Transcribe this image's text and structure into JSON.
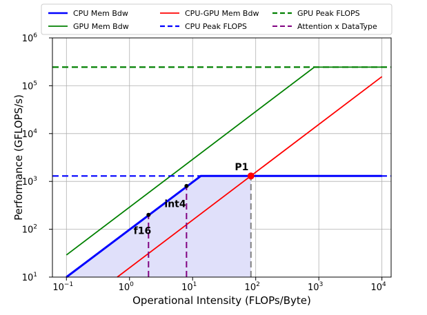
{
  "chart_data": {
    "type": "line",
    "xlabel": "Operational Intensity (FLOPs/Byte)",
    "ylabel": "Performance (GFLOPS/s)",
    "xscale": "log",
    "yscale": "log",
    "xlim": [
      0.06,
      14000
    ],
    "ylim": [
      10,
      1000000
    ],
    "grid": true,
    "legend_position": "top, 3 columns",
    "x_ticks": [
      {
        "base": "10",
        "exp": "−1",
        "value": 0.1
      },
      {
        "base": "10",
        "exp": "0",
        "value": 1
      },
      {
        "base": "10",
        "exp": "1",
        "value": 10
      },
      {
        "base": "10",
        "exp": "2",
        "value": 100
      },
      {
        "base": "10",
        "exp": "3",
        "value": 1000
      },
      {
        "base": "10",
        "exp": "4",
        "value": 10000
      }
    ],
    "y_ticks": [
      {
        "base": "10",
        "exp": "1",
        "value": 10
      },
      {
        "base": "10",
        "exp": "2",
        "value": 100
      },
      {
        "base": "10",
        "exp": "3",
        "value": 1000
      },
      {
        "base": "10",
        "exp": "4",
        "value": 10000
      },
      {
        "base": "10",
        "exp": "5",
        "value": 100000
      },
      {
        "base": "10",
        "exp": "6",
        "value": 1000000
      }
    ],
    "series": [
      {
        "name": "CPU Mem Bdw",
        "color": "#0000ff",
        "style": "solid",
        "width": 3,
        "x": [
          0.1,
          13.5,
          10000
        ],
        "y": [
          10,
          1300,
          1300
        ]
      },
      {
        "name": "GPU Mem Bdw",
        "color": "#008000",
        "style": "solid",
        "width": 1.8,
        "x": [
          0.1,
          850,
          10000
        ],
        "y": [
          29,
          245000,
          245000
        ]
      },
      {
        "name": "CPU-GPU Mem Bdw",
        "color": "#ff0000",
        "style": "solid",
        "width": 1.8,
        "x": [
          0.64,
          10000
        ],
        "y": [
          10,
          155000
        ]
      },
      {
        "name": "CPU Peak FLOPS",
        "color": "#0000ff",
        "style": "dashed",
        "width": 2.2,
        "x": [
          0.06,
          14000
        ],
        "y": [
          1300,
          1300
        ]
      },
      {
        "name": "GPU Peak FLOPS",
        "color": "#008000",
        "style": "dashed",
        "width": 2.2,
        "x": [
          0.06,
          14000
        ],
        "y": [
          245000,
          245000
        ]
      },
      {
        "name": "Attention x DataType",
        "color": "#800080",
        "style": "dashed",
        "width": 2,
        "x": [
          2,
          2
        ],
        "y": [
          10,
          200
        ]
      }
    ],
    "extra_lines": [
      {
        "color": "#800080",
        "style": "dashed",
        "width": 2,
        "x": [
          8,
          8
        ],
        "y": [
          10,
          800
        ]
      },
      {
        "color": "#808080",
        "style": "dashed",
        "width": 2,
        "x": [
          84,
          84
        ],
        "y": [
          10,
          1300
        ]
      }
    ],
    "shaded_region": {
      "color": "#e0e0fa",
      "x": [
        0.1,
        13.5,
        84,
        84,
        0.1
      ],
      "y": [
        10,
        1300,
        1300,
        10,
        10
      ]
    },
    "points": [
      {
        "x": 2,
        "y": 200,
        "color": "#000000",
        "r": 3
      },
      {
        "x": 8,
        "y": 800,
        "color": "#000000",
        "r": 3
      },
      {
        "x": 84,
        "y": 1300,
        "color": "#ff0000",
        "r": 5
      }
    ],
    "annotations": [
      {
        "text": "P1",
        "x": 60,
        "y": 1700
      },
      {
        "text": "int4",
        "x": 5.3,
        "y": 290
      },
      {
        "text": "f16",
        "x": 1.6,
        "y": 80
      }
    ]
  }
}
